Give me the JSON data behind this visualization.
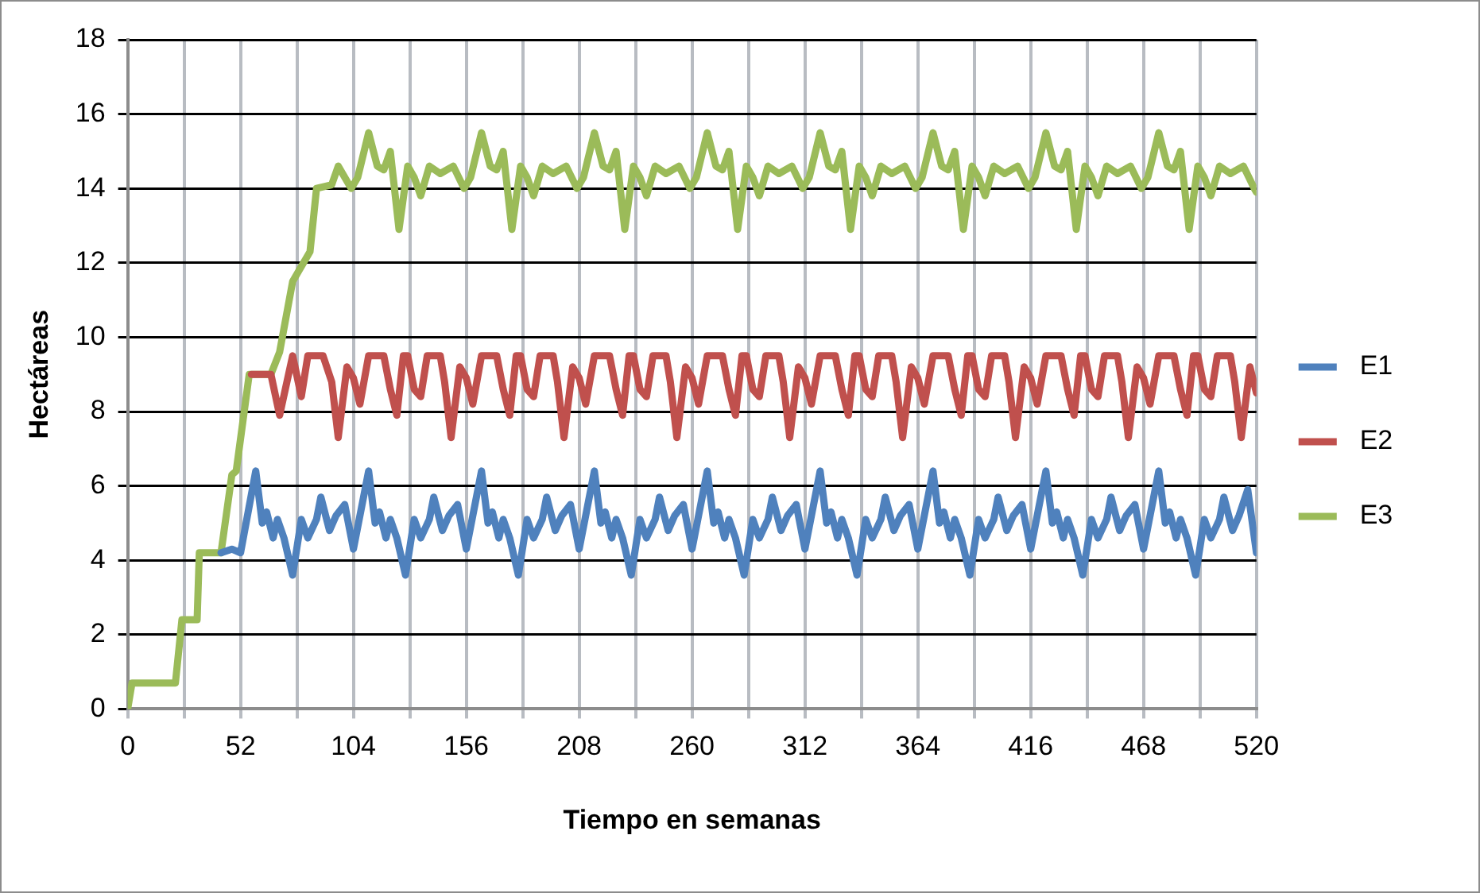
{
  "chart_data": {
    "type": "line",
    "xlabel": "Tiempo en semanas",
    "ylabel": "Hectáreas",
    "xlim": [
      0,
      520
    ],
    "ylim": [
      0,
      18
    ],
    "xticks": [
      0,
      {
        "value": 26,
        "label": null
      },
      52,
      {
        "value": 78,
        "label": null
      },
      104,
      {
        "value": 130,
        "label": null
      },
      156,
      {
        "value": 182,
        "label": null
      },
      208,
      {
        "value": 234,
        "label": null
      },
      260,
      {
        "value": 286,
        "label": null
      },
      312,
      {
        "value": 338,
        "label": null
      },
      364,
      {
        "value": 390,
        "label": null
      },
      416,
      {
        "value": 442,
        "label": null
      },
      468,
      {
        "value": 494,
        "label": null
      },
      520
    ],
    "yticks": [
      0,
      2,
      4,
      6,
      8,
      10,
      12,
      14,
      16,
      18
    ],
    "grid": true,
    "legend": "right",
    "marker": "none",
    "line_style": "solid",
    "series": [
      {
        "name": "E1",
        "color": "#4f81bd",
        "x": [
          43,
          48,
          52,
          59,
          62,
          64,
          67,
          69,
          72,
          76,
          80,
          83,
          87,
          89,
          93,
          96,
          100,
          104,
          111,
          114,
          116,
          119,
          121,
          124,
          128,
          132,
          135,
          139,
          141,
          145,
          148,
          152,
          156,
          163,
          166,
          168,
          171,
          173,
          176,
          180,
          184,
          187,
          191,
          193,
          197,
          200,
          204,
          208,
          215,
          218,
          220,
          223,
          225,
          228,
          232,
          236,
          239,
          243,
          245,
          249,
          252,
          256,
          260,
          267,
          270,
          272,
          275,
          277,
          280,
          284,
          288,
          291,
          295,
          297,
          301,
          304,
          308,
          312,
          319,
          322,
          324,
          327,
          329,
          332,
          336,
          340,
          343,
          347,
          349,
          353,
          356,
          360,
          364,
          371,
          374,
          376,
          379,
          381,
          384,
          388,
          392,
          395,
          399,
          401,
          405,
          408,
          412,
          416,
          423,
          426,
          428,
          431,
          433,
          436,
          440,
          444,
          447,
          451,
          453,
          457,
          460,
          464,
          468,
          475,
          478,
          480,
          483,
          485,
          488,
          492,
          496,
          499,
          503,
          505,
          509,
          512,
          516,
          520
        ],
        "values": [
          4.2,
          4.3,
          4.2,
          6.4,
          5.0,
          5.3,
          4.6,
          5.1,
          4.6,
          3.6,
          5.1,
          4.6,
          5.1,
          5.7,
          4.8,
          5.2,
          5.5,
          4.3,
          6.4,
          5.0,
          5.3,
          4.6,
          5.1,
          4.6,
          3.6,
          5.1,
          4.6,
          5.1,
          5.7,
          4.8,
          5.2,
          5.5,
          4.3,
          6.4,
          5.0,
          5.3,
          4.6,
          5.1,
          4.6,
          3.6,
          5.1,
          4.6,
          5.1,
          5.7,
          4.8,
          5.2,
          5.5,
          4.3,
          6.4,
          5.0,
          5.3,
          4.6,
          5.1,
          4.6,
          3.6,
          5.1,
          4.6,
          5.1,
          5.7,
          4.8,
          5.2,
          5.5,
          4.3,
          6.4,
          5.0,
          5.3,
          4.6,
          5.1,
          4.6,
          3.6,
          5.1,
          4.6,
          5.1,
          5.7,
          4.8,
          5.2,
          5.5,
          4.3,
          6.4,
          5.0,
          5.3,
          4.6,
          5.1,
          4.6,
          3.6,
          5.1,
          4.6,
          5.1,
          5.7,
          4.8,
          5.2,
          5.5,
          4.3,
          6.4,
          5.0,
          5.3,
          4.6,
          5.1,
          4.6,
          3.6,
          5.1,
          4.6,
          5.1,
          5.7,
          4.8,
          5.2,
          5.5,
          4.3,
          6.4,
          5.0,
          5.3,
          4.6,
          5.1,
          4.6,
          3.6,
          5.1,
          4.6,
          5.1,
          5.7,
          4.8,
          5.2,
          5.5,
          4.3,
          6.4,
          5.0,
          5.3,
          4.6,
          5.1,
          4.6,
          3.6,
          5.1,
          4.6,
          5.1,
          5.7,
          4.8,
          5.2,
          5.9,
          4.2
        ]
      },
      {
        "name": "E2",
        "color": "#c0504d",
        "x": [
          57,
          66,
          70,
          76,
          80,
          83,
          90,
          94,
          97,
          101,
          104,
          107,
          111,
          118,
          121,
          124,
          127,
          129,
          132,
          135,
          138,
          144,
          146,
          149,
          153,
          156,
          159,
          163,
          170,
          173,
          176,
          179,
          181,
          184,
          187,
          190,
          196,
          198,
          201,
          205,
          208,
          211,
          215,
          222,
          225,
          228,
          231,
          233,
          236,
          239,
          242,
          248,
          250,
          253,
          257,
          260,
          263,
          267,
          274,
          277,
          280,
          283,
          285,
          288,
          291,
          294,
          300,
          302,
          305,
          309,
          312,
          315,
          319,
          326,
          329,
          332,
          335,
          337,
          340,
          343,
          346,
          352,
          354,
          357,
          361,
          364,
          367,
          371,
          378,
          381,
          384,
          387,
          389,
          392,
          395,
          398,
          404,
          406,
          409,
          413,
          416,
          419,
          423,
          430,
          433,
          436,
          439,
          441,
          444,
          447,
          450,
          456,
          458,
          461,
          465,
          468,
          471,
          475,
          482,
          485,
          488,
          491,
          493,
          496,
          499,
          502,
          508,
          510,
          513,
          517,
          520
        ],
        "values": [
          9.0,
          9.0,
          7.9,
          9.5,
          8.4,
          9.5,
          9.5,
          8.8,
          7.3,
          9.2,
          8.9,
          8.2,
          9.5,
          9.5,
          8.6,
          7.9,
          9.5,
          9.5,
          8.6,
          8.4,
          9.5,
          9.5,
          8.8,
          7.3,
          9.2,
          8.9,
          8.2,
          9.5,
          9.5,
          8.6,
          7.9,
          9.5,
          9.5,
          8.6,
          8.4,
          9.5,
          9.5,
          8.8,
          7.3,
          9.2,
          8.9,
          8.2,
          9.5,
          9.5,
          8.6,
          7.9,
          9.5,
          9.5,
          8.6,
          8.4,
          9.5,
          9.5,
          8.8,
          7.3,
          9.2,
          8.9,
          8.2,
          9.5,
          9.5,
          8.6,
          7.9,
          9.5,
          9.5,
          8.6,
          8.4,
          9.5,
          9.5,
          8.8,
          7.3,
          9.2,
          8.9,
          8.2,
          9.5,
          9.5,
          8.6,
          7.9,
          9.5,
          9.5,
          8.6,
          8.4,
          9.5,
          9.5,
          8.8,
          7.3,
          9.2,
          8.9,
          8.2,
          9.5,
          9.5,
          8.6,
          7.9,
          9.5,
          9.5,
          8.6,
          8.4,
          9.5,
          9.5,
          8.8,
          7.3,
          9.2,
          8.9,
          8.2,
          9.5,
          9.5,
          8.6,
          7.9,
          9.5,
          9.5,
          8.6,
          8.4,
          9.5,
          9.5,
          8.8,
          7.3,
          9.2,
          8.9,
          8.2,
          9.5,
          9.5,
          8.6,
          7.9,
          9.5,
          9.5,
          8.6,
          8.4,
          9.5,
          9.5,
          8.8,
          7.3,
          9.2,
          8.5
        ]
      },
      {
        "name": "E3",
        "color": "#9bbb59",
        "x": [
          0,
          2,
          22,
          25,
          32,
          33,
          43,
          48,
          50,
          56,
          66,
          70,
          76,
          84,
          87,
          94,
          97,
          103,
          106,
          111,
          115,
          118,
          121,
          125,
          129,
          132,
          135,
          139,
          144,
          150,
          155,
          158,
          163,
          167,
          170,
          173,
          177,
          181,
          184,
          187,
          191,
          196,
          202,
          207,
          210,
          215,
          219,
          222,
          225,
          229,
          233,
          236,
          239,
          243,
          248,
          254,
          259,
          262,
          267,
          271,
          274,
          277,
          281,
          285,
          288,
          291,
          295,
          300,
          306,
          311,
          314,
          319,
          323,
          326,
          329,
          333,
          337,
          340,
          343,
          347,
          352,
          358,
          363,
          366,
          371,
          375,
          378,
          381,
          385,
          389,
          392,
          395,
          399,
          404,
          410,
          415,
          418,
          423,
          427,
          430,
          433,
          437,
          441,
          444,
          447,
          451,
          456,
          462,
          467,
          470,
          475,
          479,
          482,
          485,
          489,
          493,
          496,
          499,
          503,
          508,
          514,
          519,
          520
        ],
        "values": [
          0,
          0.7,
          0.7,
          2.4,
          2.4,
          4.2,
          4.2,
          6.3,
          6.4,
          9.0,
          9.0,
          9.6,
          11.5,
          12.3,
          14.0,
          14.1,
          14.6,
          14.0,
          14.3,
          15.5,
          14.6,
          14.5,
          15.0,
          12.9,
          14.6,
          14.3,
          13.8,
          14.6,
          14.4,
          14.6,
          14.0,
          14.3,
          15.5,
          14.6,
          14.5,
          15.0,
          12.9,
          14.6,
          14.3,
          13.8,
          14.6,
          14.4,
          14.6,
          14.0,
          14.3,
          15.5,
          14.6,
          14.5,
          15.0,
          12.9,
          14.6,
          14.3,
          13.8,
          14.6,
          14.4,
          14.6,
          14.0,
          14.3,
          15.5,
          14.6,
          14.5,
          15.0,
          12.9,
          14.6,
          14.3,
          13.8,
          14.6,
          14.4,
          14.6,
          14.0,
          14.3,
          15.5,
          14.6,
          14.5,
          15.0,
          12.9,
          14.6,
          14.3,
          13.8,
          14.6,
          14.4,
          14.6,
          14.0,
          14.3,
          15.5,
          14.6,
          14.5,
          15.0,
          12.9,
          14.6,
          14.3,
          13.8,
          14.6,
          14.4,
          14.6,
          14.0,
          14.3,
          15.5,
          14.6,
          14.5,
          15.0,
          12.9,
          14.6,
          14.3,
          13.8,
          14.6,
          14.4,
          14.6,
          14.0,
          14.3,
          15.5,
          14.6,
          14.5,
          15.0,
          12.9,
          14.6,
          14.3,
          13.8,
          14.6,
          14.4,
          14.6,
          14.0,
          13.9
        ]
      }
    ]
  }
}
